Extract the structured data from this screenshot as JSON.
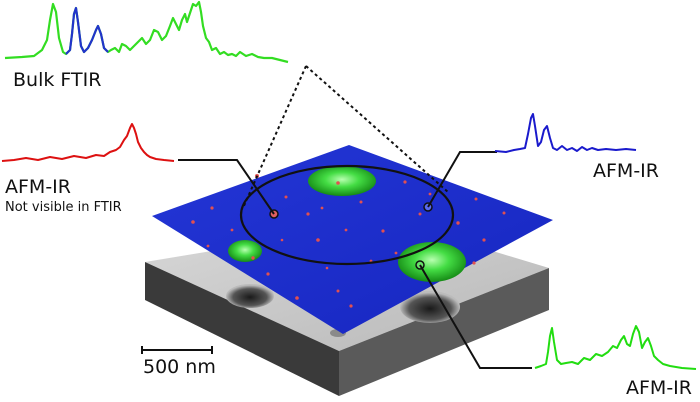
{
  "labels": {
    "bulk_ftir": "Bulk FTIR",
    "afm_ir_left": "AFM-IR",
    "not_visible": "Not visible in FTIR",
    "afm_ir_right": "AFM-IR",
    "afm_ir_bottom": "AFM-IR",
    "scale_bar": "500 nm"
  },
  "colors": {
    "bulk_spectrum": "#33dd22",
    "bulk_overlap": "#2233cc",
    "red_spectrum": "#dd1111",
    "blue_spectrum": "#1a1acc",
    "green_spectrum": "#22dd11",
    "blue_layer": "#1f2fd0",
    "green_domain": "#33cc33",
    "grey_layer": "#c9c9c9",
    "red_domain": "#dd4444"
  }
}
